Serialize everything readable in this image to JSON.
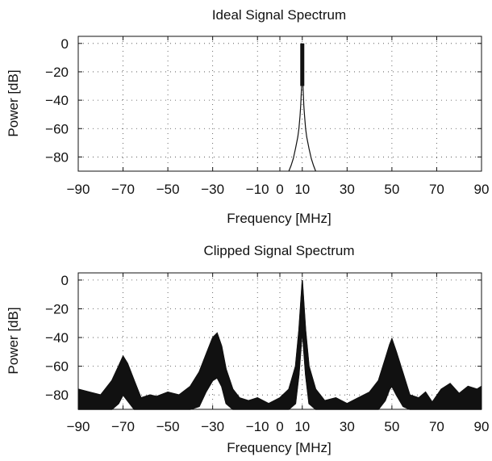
{
  "chart_data": [
    {
      "type": "line",
      "title": "Ideal Signal Spectrum",
      "xlabel": "Frequency [MHz]",
      "ylabel": "Power [dB]",
      "xlim": [
        -90,
        90
      ],
      "ylim": [
        -90,
        5
      ],
      "xticks": [
        -90,
        -70,
        -50,
        -30,
        -10,
        0,
        10,
        30,
        50,
        70,
        90
      ],
      "xtick_labels": [
        "−90",
        "−70",
        "−50",
        "−30",
        "−10",
        "0",
        "10",
        "30",
        "50",
        "70",
        "90"
      ],
      "yticks": [
        0,
        -20,
        -40,
        -60,
        -80
      ],
      "ytick_labels": [
        "0",
        "−20",
        "−40",
        "−60",
        "−80"
      ],
      "grid": "dotted",
      "series": [
        {
          "x": [
            4,
            5,
            6,
            7,
            8,
            8.5,
            9,
            9.3,
            9.6,
            9.8,
            10,
            10.2,
            10.4,
            10.7,
            11,
            11.5,
            12,
            13,
            14,
            15,
            16
          ],
          "y": [
            -90,
            -86,
            -81,
            -74,
            -66,
            -60,
            -51,
            -44,
            -33,
            -26,
            0,
            -26,
            -33,
            -44,
            -51,
            -60,
            -66,
            -74,
            -81,
            -86,
            -90
          ]
        }
      ],
      "peak_band": {
        "x": 10,
        "y_top": 0,
        "y_bottom": -30
      }
    },
    {
      "type": "line",
      "title": "Clipped Signal Spectrum",
      "xlabel": "Frequency [MHz]",
      "ylabel": "Power [dB]",
      "xlim": [
        -90,
        90
      ],
      "ylim": [
        -90,
        5
      ],
      "xticks": [
        -90,
        -70,
        -50,
        -30,
        -10,
        0,
        10,
        30,
        50,
        70,
        90
      ],
      "xtick_labels": [
        "−90",
        "−70",
        "−50",
        "−30",
        "−10",
        "0",
        "10",
        "30",
        "50",
        "70",
        "90"
      ],
      "yticks": [
        0,
        -20,
        -40,
        -60,
        -80
      ],
      "ytick_labels": [
        "0",
        "−20",
        "−40",
        "−60",
        "−80"
      ],
      "grid": "dotted",
      "series": [
        {
          "x": [
            -90,
            -85,
            -80,
            -75,
            -72,
            -70,
            -68,
            -65,
            -62,
            -58,
            -55,
            -50,
            -45,
            -40,
            -36,
            -33,
            -30,
            -28,
            -26,
            -24,
            -21,
            -18,
            -14,
            -10,
            -5,
            0,
            4,
            7,
            8.5,
            10,
            11.5,
            13,
            16,
            20,
            25,
            30,
            35,
            40,
            44,
            47,
            49,
            50,
            52,
            55,
            58,
            62,
            65,
            68,
            72,
            76,
            80,
            84,
            88,
            90
          ],
          "y": [
            -76,
            -78,
            -80,
            -70,
            -60,
            -53,
            -58,
            -70,
            -82,
            -80,
            -81,
            -78,
            -80,
            -74,
            -64,
            -52,
            -40,
            -37,
            -46,
            -62,
            -76,
            -82,
            -84,
            -82,
            -86,
            -82,
            -76,
            -60,
            -35,
            0,
            -35,
            -60,
            -76,
            -84,
            -82,
            -86,
            -82,
            -78,
            -70,
            -55,
            -45,
            -41,
            -50,
            -65,
            -80,
            -82,
            -78,
            -85,
            -76,
            -72,
            -79,
            -74,
            -76,
            -74
          ]
        },
        {
          "x": [
            -90,
            -85,
            -80,
            -75,
            -72,
            -70,
            -68,
            -65,
            -62,
            -58,
            -55,
            -50,
            -45,
            -40,
            -36,
            -33,
            -30,
            -28,
            -26,
            -24,
            -21,
            -18,
            -14,
            -10,
            -5,
            0,
            4,
            7,
            8.5,
            10,
            11.5,
            13,
            16,
            20,
            25,
            30,
            35,
            40,
            44,
            47,
            49,
            50,
            52,
            55,
            58,
            62,
            65,
            68,
            72,
            76,
            80,
            84,
            88,
            90
          ],
          "y": [
            -90,
            -90,
            -90,
            -90,
            -86,
            -80,
            -84,
            -90,
            -90,
            -90,
            -90,
            -90,
            -90,
            -90,
            -88,
            -78,
            -70,
            -68,
            -74,
            -86,
            -90,
            -90,
            -90,
            -90,
            -90,
            -90,
            -90,
            -86,
            -66,
            -35,
            -66,
            -86,
            -90,
            -90,
            -90,
            -90,
            -90,
            -90,
            -90,
            -84,
            -76,
            -74,
            -80,
            -88,
            -90,
            -90,
            -90,
            -90,
            -90,
            -90,
            -90,
            -90,
            -90,
            -90
          ]
        }
      ]
    }
  ]
}
